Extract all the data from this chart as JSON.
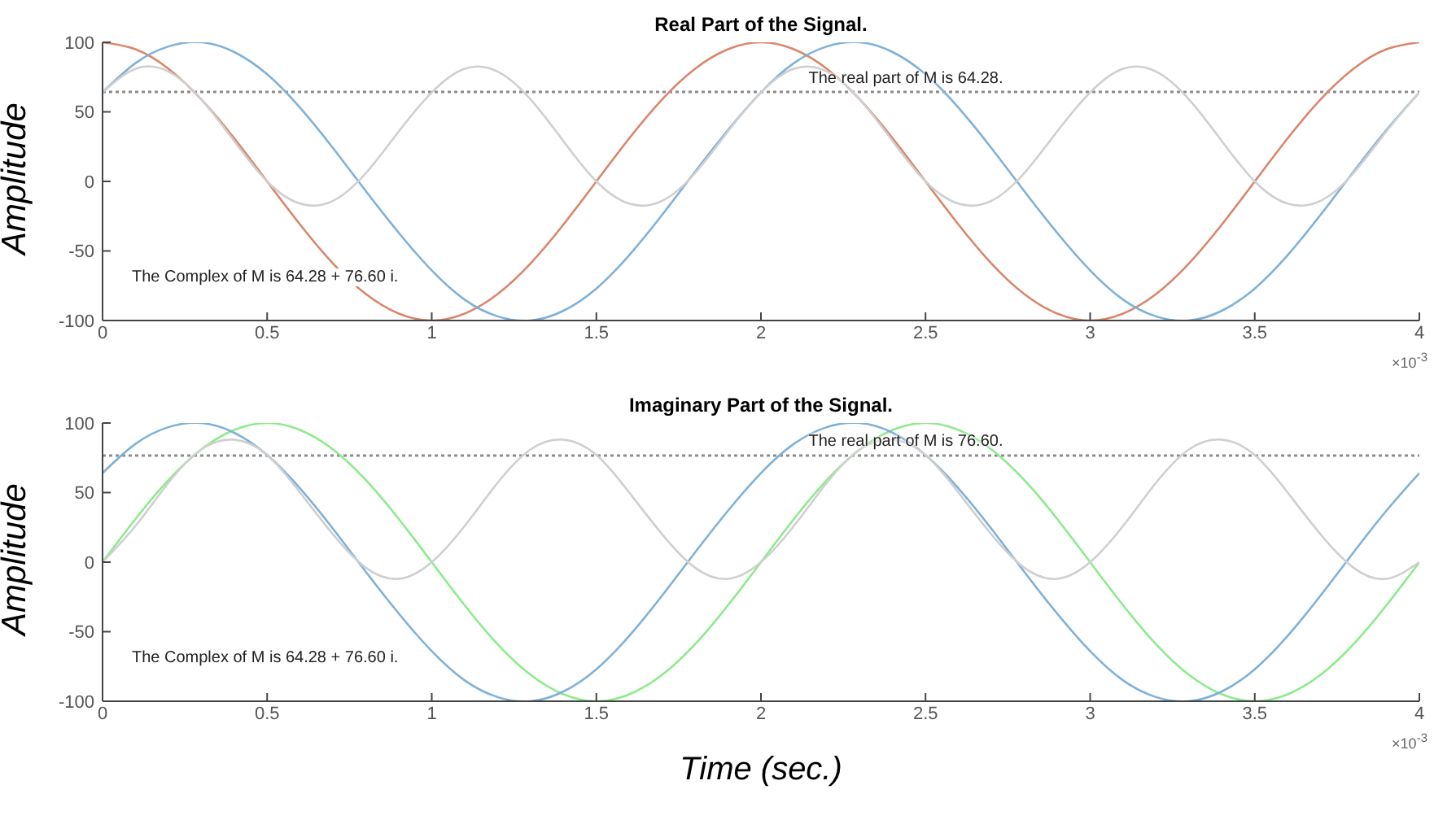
{
  "chart_data": [
    {
      "type": "line",
      "title": "Real Part of the Signal.",
      "ylabel": "Amplitude",
      "x": [
        0,
        0.1,
        0.2,
        0.3,
        0.4,
        0.5,
        0.6,
        0.7,
        0.8,
        0.9,
        1,
        1.1,
        1.2,
        1.3,
        1.4,
        1.5,
        1.6,
        1.7,
        1.8,
        1.9,
        2,
        2.1,
        2.2,
        2.3,
        2.4,
        2.5,
        2.6,
        2.7,
        2.8,
        2.9,
        3,
        3.1,
        3.2,
        3.3,
        3.4,
        3.5,
        3.6,
        3.7,
        3.8,
        3.9,
        4
      ],
      "series": [
        {
          "color": "#d9866c",
          "values": [
            100,
            95,
            81,
            59,
            31,
            0,
            -31,
            -59,
            -81,
            -95,
            -100,
            -95,
            -81,
            -59,
            -31,
            0,
            31,
            59,
            81,
            95,
            100,
            95,
            81,
            59,
            31,
            0,
            -31,
            -59,
            -81,
            -95,
            -100,
            -95,
            -81,
            -59,
            -31,
            0,
            31,
            59,
            81,
            95,
            100
          ]
        },
        {
          "color": "#7fb1d9",
          "values": [
            64,
            85,
            97,
            100,
            93,
            77,
            53,
            24,
            -7,
            -37,
            -64,
            -85,
            -97,
            -100,
            -93,
            -77,
            -53,
            -24,
            7,
            37,
            64,
            85,
            97,
            100,
            93,
            77,
            53,
            24,
            -7,
            -37,
            -64,
            -85,
            -97,
            -100,
            -93,
            -77,
            -53,
            -24,
            7,
            37,
            64
          ]
        },
        {
          "color": "#cfcfcf",
          "values": [
            64,
            81,
            79,
            59,
            29,
            0,
            -16,
            -14,
            6,
            36,
            64,
            81,
            79,
            59,
            29,
            0,
            -16,
            -14,
            6,
            36,
            64,
            81,
            79,
            59,
            29,
            0,
            -16,
            -14,
            6,
            36,
            64,
            81,
            79,
            59,
            29,
            0,
            -16,
            -14,
            6,
            36,
            64
          ]
        }
      ],
      "xlim": [
        0,
        4
      ],
      "xticks": [
        0,
        0.5,
        1,
        1.5,
        2,
        2.5,
        3,
        3.5,
        4
      ],
      "ylim": [
        -100,
        100
      ],
      "yticks": [
        -100,
        -50,
        0,
        50,
        100
      ],
      "ref_lines": [
        {
          "axis": "y",
          "value": 64.28,
          "label": "The real part of M is 64.28.",
          "color": "#8c8c8c",
          "line_style": "dotted"
        }
      ],
      "annotations": [
        "The Complex of M is 64.28 + 76.60 i.",
        "×10$^{-3}$"
      ],
      "marker": "none",
      "line_style": "solid"
    },
    {
      "type": "line",
      "title": "Imaginary Part of the Signal.",
      "ylabel": "Amplitude",
      "xlabel": "Time (sec.)",
      "x": [
        0,
        0.1,
        0.2,
        0.3,
        0.4,
        0.5,
        0.6,
        0.7,
        0.8,
        0.9,
        1,
        1.1,
        1.2,
        1.3,
        1.4,
        1.5,
        1.6,
        1.7,
        1.8,
        1.9,
        2,
        2.1,
        2.2,
        2.3,
        2.4,
        2.5,
        2.6,
        2.7,
        2.8,
        2.9,
        3,
        3.1,
        3.2,
        3.3,
        3.4,
        3.5,
        3.6,
        3.7,
        3.8,
        3.9,
        4
      ],
      "series": [
        {
          "color": "#8ceb8c",
          "values": [
            0,
            31,
            59,
            81,
            95,
            100,
            95,
            81,
            59,
            31,
            0,
            -31,
            -59,
            -81,
            -95,
            -100,
            -95,
            -81,
            -59,
            -31,
            0,
            31,
            59,
            81,
            95,
            100,
            95,
            81,
            59,
            31,
            0,
            -31,
            -59,
            -81,
            -95,
            -100,
            -95,
            -81,
            -59,
            -31,
            0
          ]
        },
        {
          "color": "#7fb1d9",
          "values": [
            64,
            85,
            97,
            100,
            93,
            77,
            53,
            24,
            -7,
            -37,
            -64,
            -85,
            -97,
            -100,
            -93,
            -77,
            -53,
            -24,
            7,
            37,
            64,
            85,
            97,
            100,
            93,
            77,
            53,
            24,
            -7,
            -37,
            -64,
            -85,
            -97,
            -100,
            -93,
            -77,
            -53,
            -24,
            7,
            37,
            64
          ]
        },
        {
          "color": "#cfcfcf",
          "values": [
            0,
            26,
            57,
            81,
            88,
            77,
            50,
            20,
            -4,
            -12,
            0,
            26,
            57,
            81,
            88,
            77,
            50,
            20,
            -4,
            -12,
            0,
            26,
            57,
            81,
            88,
            77,
            50,
            20,
            -4,
            -12,
            0,
            26,
            57,
            81,
            88,
            77,
            50,
            20,
            -4,
            -12,
            0
          ]
        }
      ],
      "xlim": [
        0,
        4
      ],
      "xticks": [
        0,
        0.5,
        1,
        1.5,
        2,
        2.5,
        3,
        3.5,
        4
      ],
      "ylim": [
        -100,
        100
      ],
      "yticks": [
        -100,
        -50,
        0,
        50,
        100
      ],
      "ref_lines": [
        {
          "axis": "y",
          "value": 76.6,
          "label": "The real part of M is 76.60.",
          "color": "#8c8c8c",
          "line_style": "dotted"
        }
      ],
      "annotations": [
        "The Complex of M is 64.28 + 76.60 i.",
        "×10$^{-3}$"
      ],
      "marker": "none",
      "line_style": "solid"
    }
  ]
}
